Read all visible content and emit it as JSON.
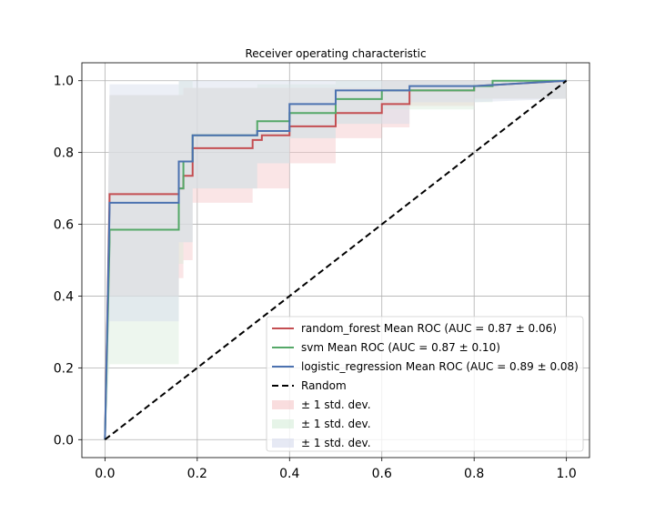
{
  "chart_data": {
    "type": "line",
    "title": "Receiver operating characteristic",
    "xlabel": "",
    "ylabel": "",
    "xlim": [
      -0.05,
      1.05
    ],
    "ylim": [
      -0.05,
      1.05
    ],
    "x_ticks": [
      "0.0",
      "0.2",
      "0.4",
      "0.6",
      "0.8",
      "1.0"
    ],
    "y_ticks": [
      "0.0",
      "0.2",
      "0.4",
      "0.6",
      "0.8",
      "1.0"
    ],
    "grid": true,
    "legend_position": "lower-right",
    "series": [
      {
        "name": "random_forest Mean ROC (AUC = 0.87 ± 0.06)",
        "color": "#c44e52",
        "x": [
          0.0,
          0.01,
          0.01,
          0.16,
          0.16,
          0.17,
          0.17,
          0.19,
          0.19,
          0.32,
          0.32,
          0.34,
          0.34,
          0.4,
          0.4,
          0.5,
          0.5,
          0.6,
          0.6,
          0.66,
          0.66,
          0.8,
          0.8,
          1.0
        ],
        "y": [
          0.0,
          0.67,
          0.684,
          0.684,
          0.7,
          0.7,
          0.735,
          0.735,
          0.812,
          0.812,
          0.835,
          0.835,
          0.848,
          0.848,
          0.873,
          0.873,
          0.91,
          0.91,
          0.935,
          0.935,
          0.973,
          0.973,
          0.985,
          1.0
        ],
        "band_upper": [
          0.0,
          0.96,
          0.96,
          0.96,
          0.96,
          0.96,
          0.98,
          0.98,
          0.98,
          0.98,
          0.98,
          0.98,
          0.98,
          0.98,
          0.98,
          0.98,
          0.98,
          0.98,
          1.0,
          1.0,
          1.0,
          1.0,
          1.0,
          1.0
        ],
        "band_lower": [
          0.0,
          0.4,
          0.4,
          0.4,
          0.45,
          0.45,
          0.5,
          0.5,
          0.66,
          0.66,
          0.7,
          0.7,
          0.7,
          0.7,
          0.77,
          0.77,
          0.84,
          0.84,
          0.87,
          0.87,
          0.93,
          0.93,
          0.95,
          0.95
        ]
      },
      {
        "name": "svm Mean ROC (AUC = 0.87 ± 0.10)",
        "color": "#55a868",
        "x": [
          0.0,
          0.01,
          0.01,
          0.16,
          0.16,
          0.17,
          0.17,
          0.19,
          0.19,
          0.33,
          0.33,
          0.4,
          0.4,
          0.5,
          0.5,
          0.6,
          0.6,
          0.8,
          0.8,
          0.84,
          0.84,
          1.0
        ],
        "y": [
          0.0,
          0.55,
          0.585,
          0.585,
          0.7,
          0.7,
          0.775,
          0.775,
          0.848,
          0.848,
          0.887,
          0.887,
          0.91,
          0.91,
          0.949,
          0.949,
          0.973,
          0.973,
          0.985,
          0.985,
          1.0,
          1.0
        ],
        "band_upper": [
          0.0,
          0.96,
          0.96,
          0.96,
          1.0,
          1.0,
          1.0,
          1.0,
          0.98,
          0.98,
          0.99,
          0.99,
          0.99,
          0.99,
          1.0,
          1.0,
          1.0,
          1.0,
          1.0,
          1.0,
          1.0,
          1.0
        ],
        "band_lower": [
          0.0,
          0.21,
          0.21,
          0.21,
          0.49,
          0.49,
          0.55,
          0.55,
          0.7,
          0.7,
          0.77,
          0.77,
          0.84,
          0.84,
          0.88,
          0.88,
          0.92,
          0.92,
          0.94,
          0.94,
          0.95,
          0.95
        ]
      },
      {
        "name": "logistic_regression Mean ROC (AUC = 0.89 ± 0.08)",
        "color": "#4c72b0",
        "x": [
          0.0,
          0.01,
          0.01,
          0.16,
          0.16,
          0.17,
          0.17,
          0.19,
          0.19,
          0.33,
          0.33,
          0.4,
          0.4,
          0.5,
          0.5,
          0.66,
          0.66,
          0.8,
          0.8,
          1.0
        ],
        "y": [
          0.0,
          0.64,
          0.66,
          0.66,
          0.775,
          0.775,
          0.775,
          0.775,
          0.848,
          0.848,
          0.86,
          0.86,
          0.935,
          0.935,
          0.973,
          0.973,
          0.985,
          0.985,
          0.985,
          1.0
        ],
        "band_upper": [
          0.0,
          0.99,
          0.99,
          0.99,
          1.0,
          1.0,
          1.0,
          1.0,
          1.0,
          1.0,
          1.0,
          1.0,
          1.0,
          1.0,
          1.0,
          1.0,
          1.0,
          1.0,
          1.0,
          1.0
        ],
        "band_lower": [
          0.0,
          0.33,
          0.33,
          0.33,
          0.55,
          0.55,
          0.55,
          0.55,
          0.7,
          0.7,
          0.77,
          0.77,
          0.84,
          0.84,
          0.88,
          0.88,
          0.94,
          0.94,
          0.94,
          0.95
        ]
      },
      {
        "name": "Random",
        "color": "#000000",
        "dashed": true,
        "x": [
          0.0,
          1.0
        ],
        "y": [
          0.0,
          1.0
        ]
      }
    ],
    "band_label": "± 1 std. dev.",
    "band_colors": [
      "#f5c6c8",
      "#d6ecd9",
      "#d5dbec"
    ]
  }
}
